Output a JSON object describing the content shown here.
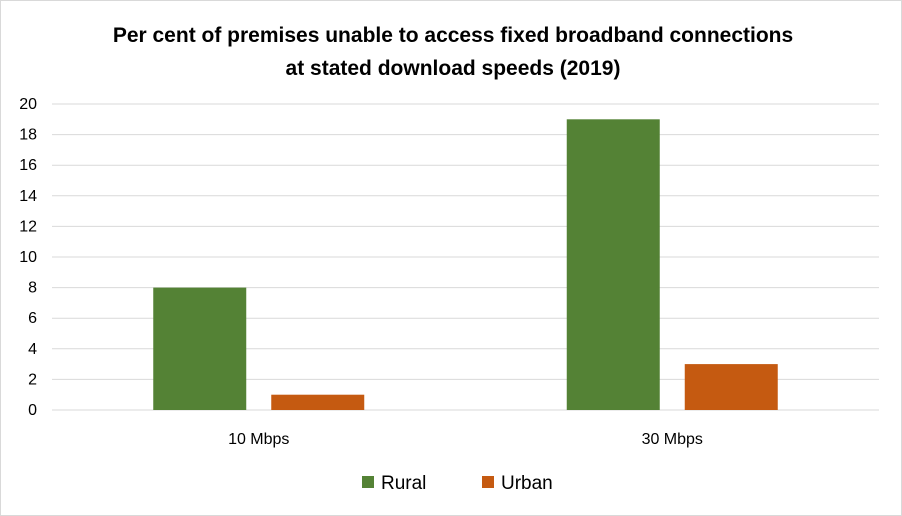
{
  "chart_data": {
    "type": "bar",
    "title_lines": [
      "Per cent of premises unable to access fixed broadband  connections",
      "at stated download speeds (2019)"
    ],
    "categories": [
      "10 Mbps",
      "30 Mbps"
    ],
    "series": [
      {
        "name": "Rural",
        "color": "#548235",
        "values": [
          8,
          19
        ]
      },
      {
        "name": "Urban",
        "color": "#c55a11",
        "values": [
          1,
          3
        ]
      }
    ],
    "ylim": [
      0,
      20
    ],
    "yticks": [
      0,
      2,
      4,
      6,
      8,
      10,
      12,
      14,
      16,
      18,
      20
    ],
    "grid": true,
    "legend_position": "bottom"
  }
}
